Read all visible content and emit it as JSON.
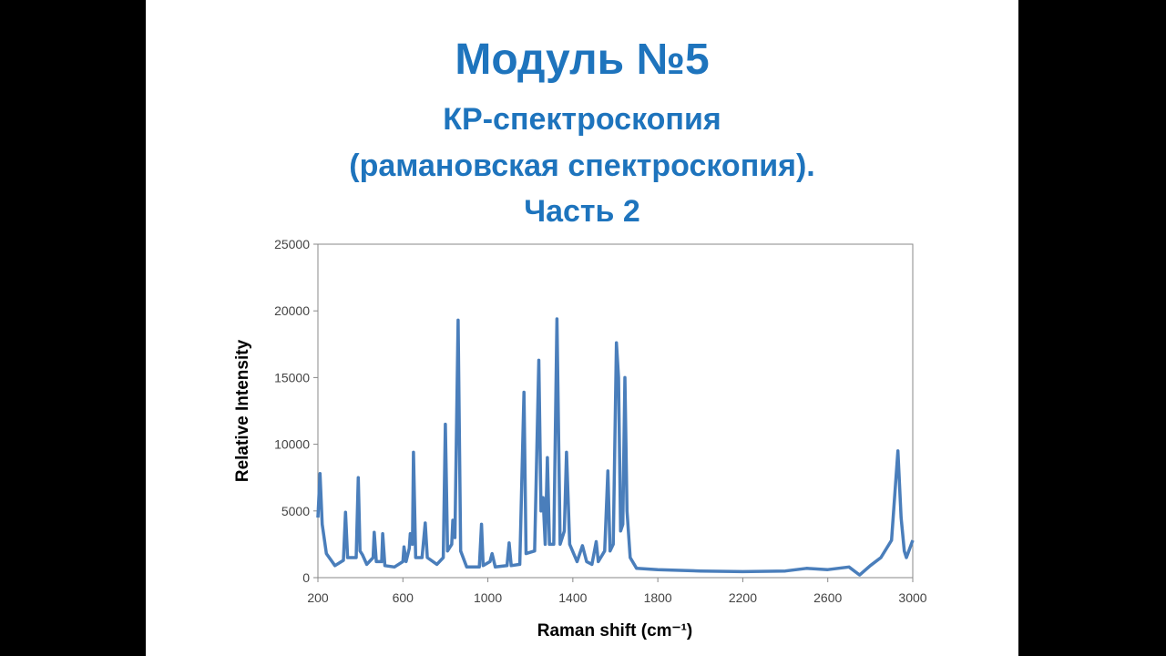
{
  "slide": {
    "title": "Модуль №5",
    "subtitle": [
      "КР-спектроскопия",
      "(рамановская спектроскопия).",
      "Часть 2"
    ]
  },
  "chart_data": {
    "type": "line",
    "x_label": "Raman shift (cm⁻¹)",
    "y_label": "Relative Intensity",
    "color": "#4a7ebb",
    "xlim": [
      200,
      3000
    ],
    "xticks": [
      200,
      600,
      1000,
      1400,
      1800,
      2200,
      2600,
      3000
    ],
    "ylim": [
      0,
      25000
    ],
    "yticks": [
      0,
      5000,
      10000,
      15000,
      20000,
      25000
    ],
    "x": [
      200,
      210,
      220,
      240,
      280,
      320,
      330,
      340,
      380,
      390,
      398,
      410,
      430,
      460,
      465,
      475,
      500,
      505,
      515,
      560,
      600,
      605,
      615,
      630,
      635,
      645,
      650,
      660,
      690,
      705,
      715,
      760,
      790,
      800,
      810,
      830,
      835,
      845,
      860,
      872,
      900,
      960,
      970,
      978,
      1010,
      1020,
      1035,
      1090,
      1100,
      1110,
      1150,
      1170,
      1180,
      1220,
      1240,
      1250,
      1260,
      1270,
      1280,
      1290,
      1310,
      1325,
      1340,
      1360,
      1370,
      1385,
      1420,
      1445,
      1465,
      1490,
      1510,
      1520,
      1550,
      1565,
      1575,
      1590,
      1605,
      1615,
      1625,
      1635,
      1645,
      1655,
      1670,
      1700,
      1800,
      2000,
      2200,
      2400,
      2500,
      2600,
      2700,
      2750,
      2800,
      2850,
      2900,
      2930,
      2945,
      2960,
      2970,
      3000
    ],
    "values": [
      4500,
      7800,
      4000,
      1800,
      900,
      1300,
      4900,
      1500,
      1500,
      7500,
      2000,
      1700,
      1000,
      1500,
      3400,
      1200,
      1200,
      3300,
      900,
      800,
      1200,
      2300,
      1200,
      2200,
      3300,
      2500,
      9400,
      1500,
      1500,
      4100,
      1500,
      1000,
      1500,
      11500,
      2000,
      2500,
      4300,
      3000,
      19300,
      2000,
      800,
      800,
      4000,
      900,
      1200,
      1800,
      800,
      900,
      2600,
      900,
      1000,
      13900,
      1800,
      2000,
      16300,
      5000,
      6000,
      2500,
      9000,
      2500,
      2500,
      19400,
      2500,
      3500,
      9400,
      2500,
      1200,
      2400,
      1200,
      1000,
      2700,
      1200,
      2000,
      8000,
      2000,
      2500,
      17600,
      15000,
      3500,
      4000,
      15000,
      5000,
      1500,
      700,
      600,
      500,
      450,
      500,
      700,
      600,
      800,
      200,
      900,
      1500,
      2800,
      9500,
      4500,
      2000,
      1500,
      2800
    ]
  }
}
